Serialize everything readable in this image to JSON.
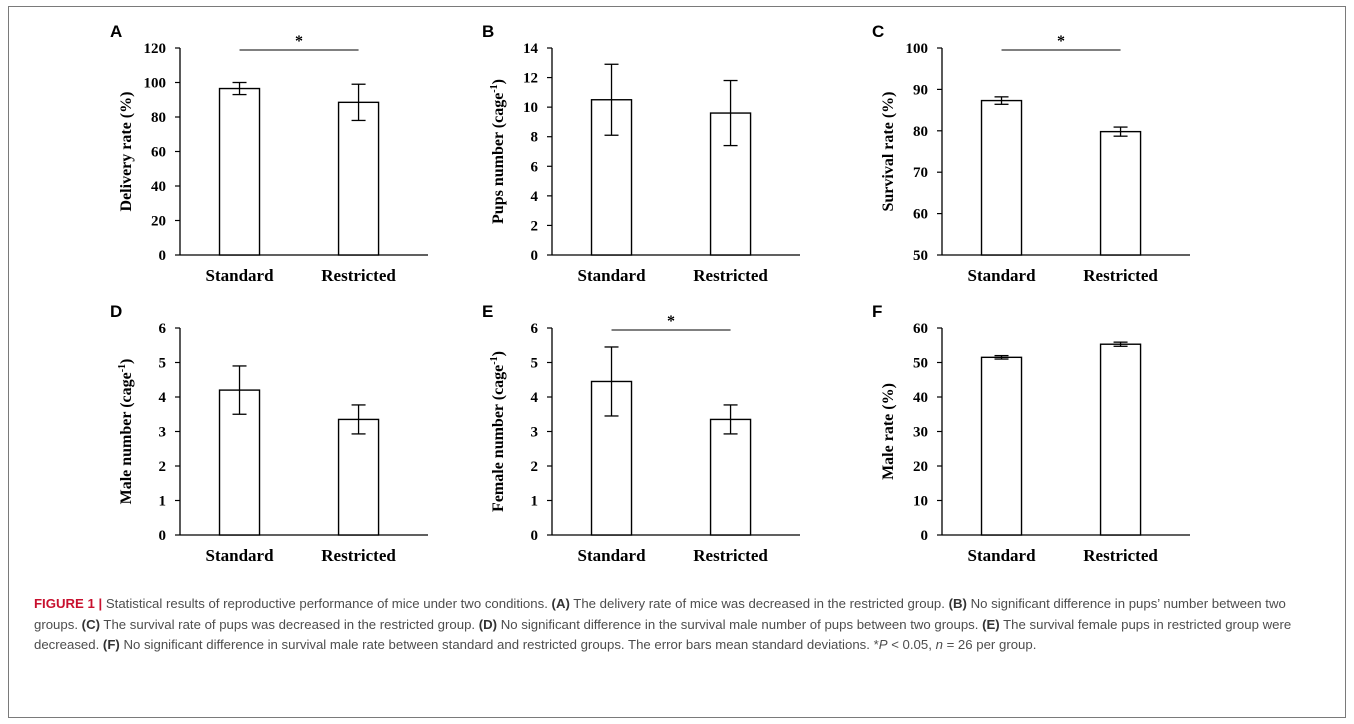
{
  "chart_data": [
    {
      "panel": "A",
      "type": "bar",
      "ylabel": "Delivery rate (%)",
      "ylabel_sup": "",
      "categories": [
        "Standard",
        "Restricted"
      ],
      "values": [
        96.5,
        88.5
      ],
      "errors": [
        3.5,
        10.5
      ],
      "ylim": [
        0,
        120
      ],
      "yticks": [
        0,
        20,
        40,
        60,
        80,
        100,
        120
      ],
      "significance": "*"
    },
    {
      "panel": "B",
      "type": "bar",
      "ylabel": "Pups number (cage",
      "ylabel_sup": "-1",
      "categories": [
        "Standard",
        "Restricted"
      ],
      "values": [
        10.5,
        9.6
      ],
      "errors": [
        2.4,
        2.2
      ],
      "ylim": [
        0,
        14
      ],
      "yticks": [
        0,
        2,
        4,
        6,
        8,
        10,
        12,
        14
      ],
      "significance": ""
    },
    {
      "panel": "C",
      "type": "bar",
      "ylabel": "Survival rate (%)",
      "ylabel_sup": "",
      "categories": [
        "Standard",
        "Restricted"
      ],
      "values": [
        87.3,
        79.8
      ],
      "errors": [
        0.9,
        1.1
      ],
      "ylim": [
        50,
        100
      ],
      "yticks": [
        50,
        60,
        70,
        80,
        90,
        100
      ],
      "significance": "*"
    },
    {
      "panel": "D",
      "type": "bar",
      "ylabel": "Male number (cage",
      "ylabel_sup": "-1",
      "categories": [
        "Standard",
        "Restricted"
      ],
      "values": [
        4.2,
        3.35
      ],
      "errors": [
        0.7,
        0.42
      ],
      "ylim": [
        0,
        6
      ],
      "yticks": [
        0,
        1,
        2,
        3,
        4,
        5,
        6
      ],
      "significance": ""
    },
    {
      "panel": "E",
      "type": "bar",
      "ylabel": "Female number (cage",
      "ylabel_sup": "-1",
      "categories": [
        "Standard",
        "Restricted"
      ],
      "values": [
        4.45,
        3.35
      ],
      "errors": [
        1.0,
        0.42
      ],
      "ylim": [
        0,
        6
      ],
      "yticks": [
        0,
        1,
        2,
        3,
        4,
        5,
        6
      ],
      "significance": "*"
    },
    {
      "panel": "F",
      "type": "bar",
      "ylabel": "Male rate (%)",
      "ylabel_sup": "",
      "categories": [
        "Standard",
        "Restricted"
      ],
      "values": [
        51.5,
        55.3
      ],
      "errors": [
        0.5,
        0.6
      ],
      "ylim": [
        0,
        60
      ],
      "yticks": [
        0,
        10,
        20,
        30,
        40,
        50,
        60
      ],
      "significance": ""
    }
  ],
  "caption": {
    "figure_label": "FIGURE 1",
    "separator": "|",
    "intro": "Statistical results of reproductive performance of mice under two conditions.",
    "items": [
      {
        "tag": "(A)",
        "text": "The delivery rate of mice was decreased in the restricted group."
      },
      {
        "tag": "(B)",
        "text": "No significant difference in pups’ number between two groups."
      },
      {
        "tag": "(C)",
        "text": "The survival rate of pups was decreased in the restricted group."
      },
      {
        "tag": "(D)",
        "text": "No significant difference in the survival male number of pups between two groups."
      },
      {
        "tag": "(E)",
        "text": "The survival female pups in restricted group were decreased."
      },
      {
        "tag": "(F)",
        "text": "No significant difference in survival male rate between standard and restricted groups. The error bars mean standard deviations."
      }
    ],
    "stat_star": "*",
    "stat_p": "P",
    "stat_p_rest": " < 0.05, ",
    "stat_n": "n",
    "stat_n_rest": " = 26 per group."
  }
}
